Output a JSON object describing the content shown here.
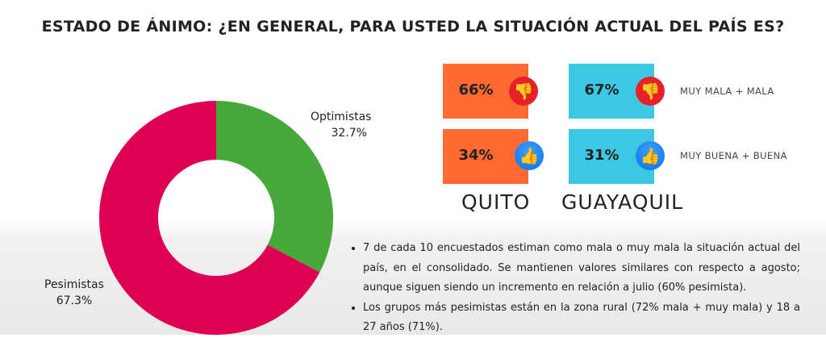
{
  "title": "ESTADO DE ÁNIMO: ¿EN GENERAL, PARA USTED LA SITUACIÓN ACTUAL DEL PAÍS ES?",
  "chart_data": {
    "type": "pie",
    "donut": true,
    "categories": [
      "Optimistas",
      "Pesimistas"
    ],
    "values": [
      32.7,
      67.3
    ],
    "labels": [
      "32.7%",
      "67.3%"
    ],
    "colors": [
      "#47a93b",
      "#de0052"
    ]
  },
  "cities": [
    {
      "name": "QUITO",
      "color": "#ff6a33",
      "negative": "66%",
      "positive": "34%"
    },
    {
      "name": "GUAYAQUIL",
      "color": "#3cc8e2",
      "negative": "67%",
      "positive": "31%"
    }
  ],
  "legend": {
    "negative": "MUY MALA + MALA",
    "positive": "MUY BUENA + BUENA",
    "negative_icon": "thumbs-down-icon",
    "positive_icon": "thumbs-up-icon"
  },
  "bullets": [
    "7 de cada 10 encuestados estiman como mala o muy mala la situación actual del país, en el consolidado. Se mantienen valores similares con respecto a agosto; aunque siguen siendo un incremento en relación a julio (60% pesimista).",
    "Los grupos más pesimistas están en la zona rural (72% mala + muy mala) y 18 a 27 años (71%)."
  ]
}
